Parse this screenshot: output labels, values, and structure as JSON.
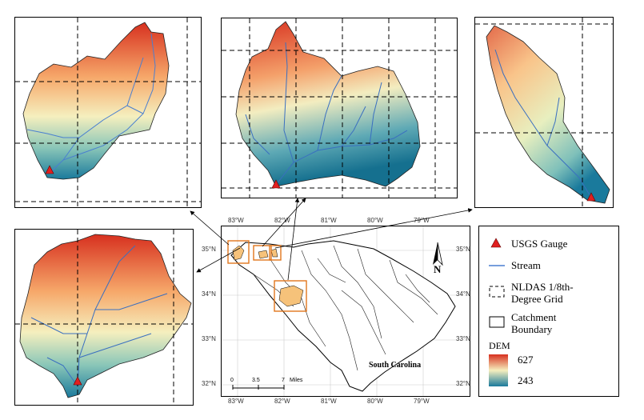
{
  "legend": {
    "gauge": "USGS Gauge",
    "stream": "Stream",
    "grid_line1": "NLDAS 1/8th-",
    "grid_line2": "Degree Grid",
    "catch_line1": "Catchment",
    "catch_line2": "Boundary",
    "dem_title": "DEM",
    "dem_max": "627",
    "dem_min": "243"
  },
  "map": {
    "state_label": "South Carolina",
    "north_label": "N",
    "lon_ticks": [
      "83°W",
      "82°W",
      "81°W",
      "80°W",
      "79°W"
    ],
    "lat_ticks": [
      "35°N",
      "34°N",
      "33°N",
      "32°N"
    ],
    "scale": {
      "v0": "0",
      "v1": "3.5",
      "v2": "7",
      "unit": "Miles"
    }
  },
  "colors": {
    "dem_high": "#d7301f",
    "dem_mid": "#f7f3b5",
    "dem_low": "#1a7a9c",
    "stream": "#4a7fd0",
    "gauge": "#e02020",
    "highlight": "#e0761c"
  }
}
